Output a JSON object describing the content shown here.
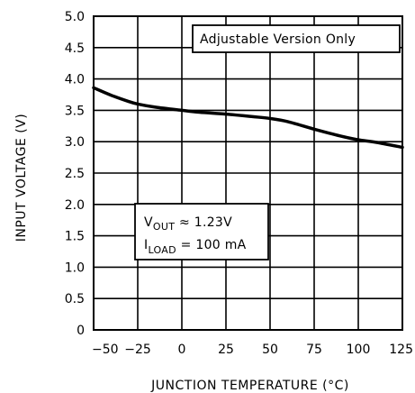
{
  "chart_data": {
    "type": "line",
    "title": "",
    "xlabel": "JUNCTION TEMPERATURE (°C)",
    "ylabel": "INPUT VOLTAGE (V)",
    "xlim": [
      -50,
      125
    ],
    "ylim": [
      0,
      5.0
    ],
    "x_ticks": [
      "-50",
      "-25",
      "0",
      "25",
      "50",
      "75",
      "100",
      "125"
    ],
    "y_ticks": [
      "0",
      "0.5",
      "1.0",
      "1.5",
      "2.0",
      "2.5",
      "3.0",
      "3.5",
      "4.0",
      "4.5",
      "5.0"
    ],
    "grid": true,
    "legend": "none",
    "annotations": {
      "corner_note": "Adjustable Version Only",
      "vout_main": "V",
      "vout_sub": "OUT",
      "vout_value": " ≈ 1.23V",
      "iload_main": "I",
      "iload_sub": "LOAD",
      "iload_value": " = 100 mA"
    },
    "series": [
      {
        "x": [
          -50,
          -40,
          -30,
          -25,
          -15,
          0,
          10,
          25,
          40,
          50,
          60,
          75,
          90,
          100,
          110,
          125
        ],
        "y": [
          3.86,
          3.74,
          3.64,
          3.6,
          3.55,
          3.5,
          3.47,
          3.44,
          3.4,
          3.37,
          3.32,
          3.2,
          3.09,
          3.03,
          2.99,
          2.91
        ]
      }
    ]
  }
}
